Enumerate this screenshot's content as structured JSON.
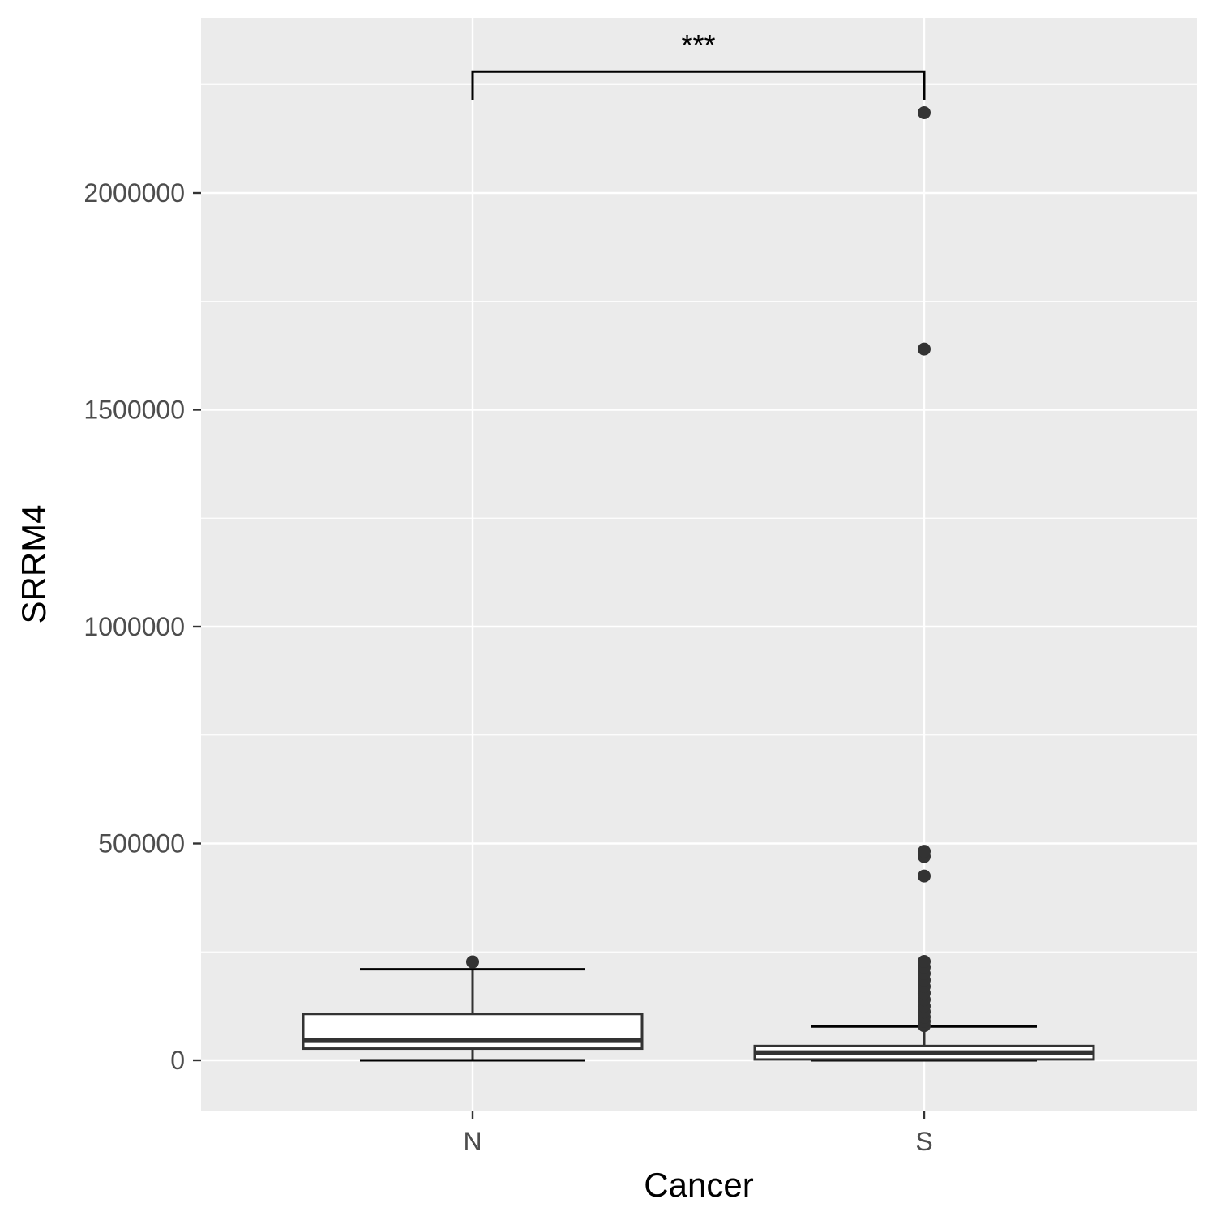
{
  "chart_data": {
    "type": "boxplot",
    "title": "",
    "xlabel": "Cancer",
    "ylabel": "SRRM4",
    "categories": [
      "N",
      "S"
    ],
    "ylim": [
      -115000,
      2400000
    ],
    "y_ticks": [
      0,
      500000,
      1000000,
      1500000,
      2000000
    ],
    "y_tick_labels": [
      "0",
      "500000",
      "1000000",
      "1500000",
      "2000000"
    ],
    "grid": true,
    "legend": "none",
    "boxes": [
      {
        "category": "N",
        "whisker_low": 0,
        "q1": 27000,
        "median": 47000,
        "q3": 107000,
        "whisker_high": 210000,
        "outliers": [
          227000
        ]
      },
      {
        "category": "S",
        "whisker_low": 0,
        "q1": 2000,
        "median": 18000,
        "q3": 33000,
        "whisker_high": 78000,
        "outliers": [
          80000,
          90000,
          100000,
          112000,
          125000,
          140000,
          155000,
          170000,
          185000,
          200000,
          215000,
          228000,
          425000,
          470000,
          482000,
          1640000,
          2185000
        ]
      }
    ],
    "annotation": {
      "text": "***",
      "from": "N",
      "to": "S",
      "y": 2280000,
      "tick_bottom": 2215000
    },
    "colors": {
      "panel_background": "#EBEBEB",
      "grid": "#FFFFFF",
      "box_fill": "#FFFFFF",
      "box_line": "#333333",
      "tick_label": "#4D4D4D"
    }
  }
}
